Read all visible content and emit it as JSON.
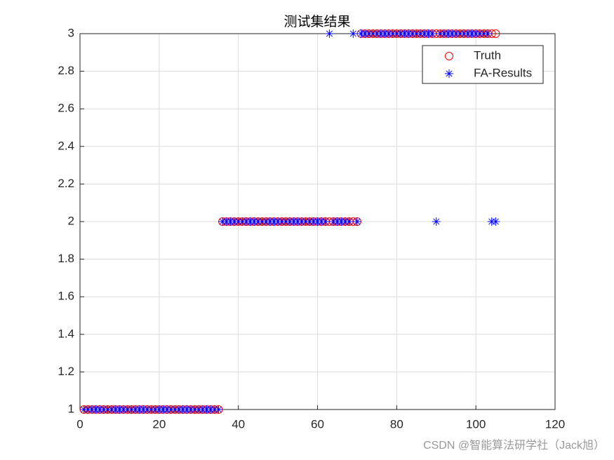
{
  "chart_data": {
    "type": "scatter",
    "title": "测试集结果",
    "x": [
      1,
      2,
      3,
      4,
      5,
      6,
      7,
      8,
      9,
      10,
      11,
      12,
      13,
      14,
      15,
      16,
      17,
      18,
      19,
      20,
      21,
      22,
      23,
      24,
      25,
      26,
      27,
      28,
      29,
      30,
      31,
      32,
      33,
      34,
      35,
      36,
      37,
      38,
      39,
      40,
      41,
      42,
      43,
      44,
      45,
      46,
      47,
      48,
      49,
      50,
      51,
      52,
      53,
      54,
      55,
      56,
      57,
      58,
      59,
      60,
      61,
      62,
      63,
      64,
      65,
      66,
      67,
      68,
      69,
      70,
      71,
      72,
      73,
      74,
      75,
      76,
      77,
      78,
      79,
      80,
      81,
      82,
      83,
      84,
      85,
      86,
      87,
      88,
      89,
      90,
      91,
      92,
      93,
      94,
      95,
      96,
      97,
      98,
      99,
      100,
      101,
      102,
      103,
      104,
      105
    ],
    "series": [
      {
        "name": "Truth",
        "color": "#ff0000",
        "marker": "circle",
        "values": [
          1,
          1,
          1,
          1,
          1,
          1,
          1,
          1,
          1,
          1,
          1,
          1,
          1,
          1,
          1,
          1,
          1,
          1,
          1,
          1,
          1,
          1,
          1,
          1,
          1,
          1,
          1,
          1,
          1,
          1,
          1,
          1,
          1,
          1,
          1,
          2,
          2,
          2,
          2,
          2,
          2,
          2,
          2,
          2,
          2,
          2,
          2,
          2,
          2,
          2,
          2,
          2,
          2,
          2,
          2,
          2,
          2,
          2,
          2,
          2,
          2,
          2,
          2,
          2,
          2,
          2,
          2,
          2,
          2,
          2,
          3,
          3,
          3,
          3,
          3,
          3,
          3,
          3,
          3,
          3,
          3,
          3,
          3,
          3,
          3,
          3,
          3,
          3,
          3,
          3,
          3,
          3,
          3,
          3,
          3,
          3,
          3,
          3,
          3,
          3,
          3,
          3,
          3,
          3,
          3
        ]
      },
      {
        "name": "FA-Results",
        "color": "#0000ff",
        "marker": "asterisk",
        "values": [
          1,
          1,
          1,
          1,
          1,
          1,
          1,
          1,
          1,
          1,
          1,
          1,
          1,
          1,
          1,
          1,
          1,
          1,
          1,
          1,
          1,
          1,
          1,
          1,
          1,
          1,
          1,
          1,
          1,
          1,
          1,
          1,
          1,
          1,
          1,
          2,
          2,
          2,
          2,
          2,
          2,
          2,
          2,
          2,
          2,
          2,
          2,
          2,
          2,
          2,
          2,
          2,
          2,
          2,
          2,
          2,
          2,
          2,
          2,
          2,
          2,
          2,
          3,
          2,
          2,
          2,
          2,
          2,
          3,
          2,
          3,
          3,
          3,
          3,
          3,
          3,
          3,
          3,
          3,
          3,
          3,
          3,
          3,
          3,
          3,
          3,
          3,
          3,
          3,
          2,
          3,
          3,
          3,
          3,
          3,
          3,
          3,
          3,
          3,
          3,
          3,
          3,
          3,
          2,
          2
        ]
      }
    ],
    "xlim": [
      0,
      120
    ],
    "xticks": [
      0,
      20,
      40,
      60,
      80,
      100,
      120
    ],
    "ylim": [
      1,
      3
    ],
    "yticks": [
      1,
      1.2,
      1.4,
      1.6,
      1.8,
      2,
      2.2,
      2.4,
      2.6,
      2.8,
      3
    ],
    "grid": true,
    "legend": "northeast"
  },
  "watermark": "CSDN @智能算法研学社（Jack旭）"
}
